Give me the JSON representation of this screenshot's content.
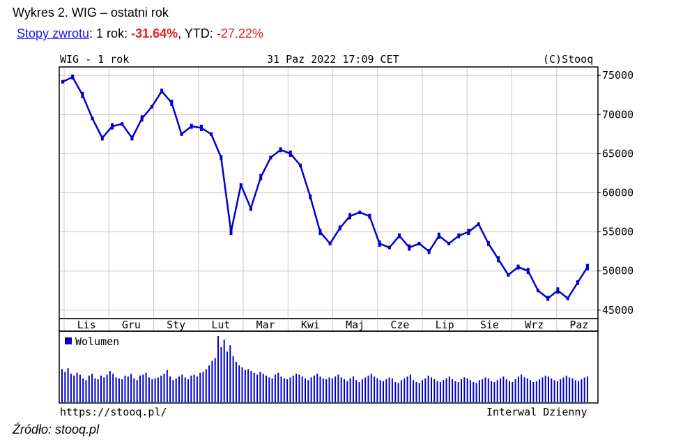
{
  "caption": "Wykres 2. WIG – ostatni rok",
  "returns": {
    "link_label": "Stopy zwrotu",
    "one_year_label": ": 1 rok: ",
    "one_year_value": "-31.64%",
    "ytd_label": ", YTD: ",
    "ytd_value": "-27.22%"
  },
  "header": {
    "left": "WIG - 1 rok",
    "center": "31 Paz 2022 17:09 CET",
    "right": "(C)Stooq"
  },
  "footer": {
    "left": "https://stooq.pl/",
    "right": "Interwal Dzienny"
  },
  "source": "Źródło: stooq.pl",
  "colors": {
    "series": "#0000cc",
    "grid": "#c8c8c8",
    "axis": "#000000"
  },
  "chart_data": [
    {
      "type": "line",
      "title": "WIG - 1 rok",
      "xlabel": "",
      "ylabel": "",
      "ylim": [
        44000,
        76000
      ],
      "yticks": [
        45000,
        50000,
        55000,
        60000,
        65000,
        70000,
        75000
      ],
      "month_labels": [
        "Lis",
        "Gru",
        "Sty",
        "Lut",
        "Mar",
        "Kwi",
        "Maj",
        "Cze",
        "Lip",
        "Sie",
        "Wrz",
        "Paz"
      ],
      "grid": true,
      "series": [
        {
          "name": "WIG",
          "x": [
            "2021-11-01",
            "2021-11-08",
            "2021-11-15",
            "2021-11-22",
            "2021-11-29",
            "2021-12-06",
            "2021-12-13",
            "2021-12-20",
            "2021-12-27",
            "2022-01-03",
            "2022-01-10",
            "2022-01-17",
            "2022-01-24",
            "2022-01-31",
            "2022-02-07",
            "2022-02-14",
            "2022-02-21",
            "2022-02-24",
            "2022-03-01",
            "2022-03-08",
            "2022-03-15",
            "2022-03-22",
            "2022-03-29",
            "2022-04-05",
            "2022-04-12",
            "2022-04-19",
            "2022-04-26",
            "2022-05-03",
            "2022-05-10",
            "2022-05-17",
            "2022-05-24",
            "2022-05-31",
            "2022-06-07",
            "2022-06-14",
            "2022-06-21",
            "2022-06-28",
            "2022-07-05",
            "2022-07-12",
            "2022-07-19",
            "2022-07-26",
            "2022-08-02",
            "2022-08-09",
            "2022-08-16",
            "2022-08-23",
            "2022-08-30",
            "2022-09-06",
            "2022-09-13",
            "2022-09-20",
            "2022-09-27",
            "2022-10-04",
            "2022-10-11",
            "2022-10-18",
            "2022-10-25",
            "2022-10-28"
          ],
          "values": [
            74200,
            74800,
            72500,
            69500,
            67000,
            68500,
            68800,
            67000,
            69500,
            71000,
            73000,
            71500,
            67500,
            68500,
            68300,
            67500,
            64500,
            55000,
            61000,
            58000,
            62000,
            64500,
            65500,
            65000,
            63500,
            59500,
            55000,
            53500,
            55500,
            57000,
            57500,
            57000,
            53500,
            53000,
            54500,
            53000,
            53500,
            52500,
            54500,
            53500,
            54500,
            55000,
            56000,
            53500,
            51500,
            49500,
            50500,
            50000,
            47500,
            46500,
            47500,
            46500,
            48500,
            50500
          ]
        }
      ]
    },
    {
      "type": "bar",
      "title": "",
      "legend": "Wolumen",
      "legend_position": "top-left",
      "series": [
        {
          "name": "Wolumen",
          "values": [
            36,
            33,
            37,
            31,
            29,
            32,
            30,
            26,
            24,
            29,
            31,
            26,
            25,
            29,
            27,
            30,
            34,
            31,
            27,
            26,
            25,
            29,
            28,
            31,
            26,
            24,
            29,
            30,
            32,
            27,
            25,
            26,
            27,
            29,
            31,
            35,
            28,
            24,
            26,
            28,
            30,
            27,
            25,
            29,
            30,
            28,
            32,
            33,
            36,
            40,
            45,
            48,
            72,
            60,
            68,
            55,
            62,
            50,
            44,
            40,
            38,
            35,
            36,
            34,
            32,
            30,
            33,
            31,
            29,
            27,
            26,
            30,
            32,
            28,
            26,
            25,
            27,
            29,
            31,
            30,
            28,
            26,
            24,
            27,
            29,
            31,
            28,
            26,
            25,
            27,
            26,
            28,
            30,
            27,
            25,
            23,
            26,
            28,
            24,
            22,
            25,
            27,
            29,
            31,
            28,
            26,
            24,
            23,
            25,
            27,
            26,
            22,
            21,
            24,
            26,
            28,
            30,
            24,
            22,
            21,
            24,
            26,
            29,
            27,
            25,
            23,
            22,
            24,
            26,
            28,
            25,
            23,
            22,
            25,
            27,
            26,
            24,
            22,
            21,
            24,
            25,
            27,
            26,
            23,
            22,
            24,
            26,
            28,
            25,
            23,
            22,
            25,
            28,
            30,
            27,
            26,
            24,
            22,
            23,
            25,
            27,
            29,
            28,
            26,
            24,
            23,
            25,
            27,
            29,
            27,
            26,
            24,
            23,
            25,
            27,
            28
          ]
        }
      ]
    }
  ]
}
